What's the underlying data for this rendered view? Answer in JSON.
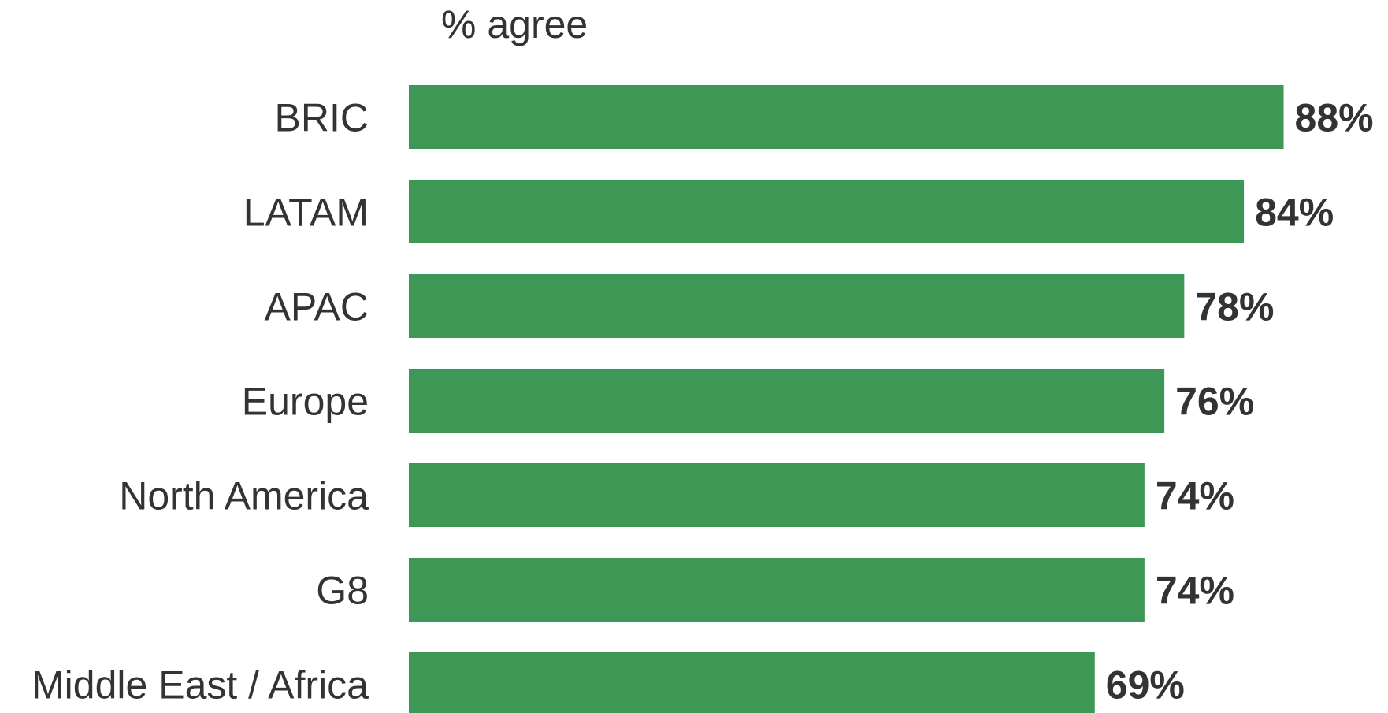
{
  "chart_data": {
    "type": "bar",
    "orientation": "horizontal",
    "xlabel": "% agree",
    "categories": [
      "BRIC",
      "LATAM",
      "APAC",
      "Europe",
      "North America",
      "G8",
      "Middle East / Africa"
    ],
    "values": [
      88,
      84,
      78,
      76,
      74,
      74,
      69
    ],
    "value_labels": [
      "88%",
      "84%",
      "78%",
      "76%",
      "74%",
      "74%",
      "69%"
    ],
    "bar_color": "#3d9856",
    "text_color": "#333333",
    "grid": false,
    "legend": "none"
  }
}
